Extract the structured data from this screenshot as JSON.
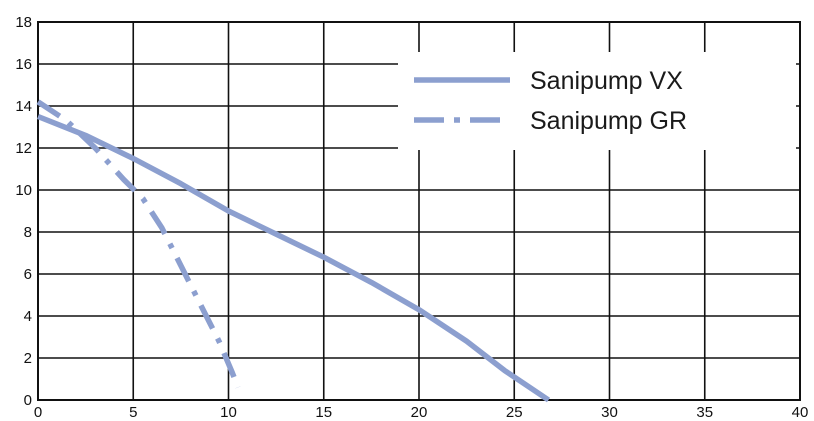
{
  "chart_data": {
    "type": "line",
    "title": "",
    "xlabel": "",
    "ylabel": "",
    "xlim": [
      0,
      40
    ],
    "ylim": [
      0,
      18
    ],
    "x_ticks": [
      0,
      5,
      10,
      15,
      20,
      25,
      30,
      35,
      40
    ],
    "y_ticks": [
      0,
      2,
      4,
      6,
      8,
      10,
      12,
      14,
      16,
      18
    ],
    "grid": true,
    "legend_position": "top-right",
    "series": [
      {
        "name": "Sanipump VX",
        "style": "solid",
        "color": "#8C9FCF",
        "points": [
          [
            0,
            13.5
          ],
          [
            2.5,
            12.6
          ],
          [
            5,
            11.5
          ],
          [
            7.5,
            10.3
          ],
          [
            10,
            9.0
          ],
          [
            12.5,
            7.9
          ],
          [
            15,
            6.8
          ],
          [
            17.5,
            5.6
          ],
          [
            20,
            4.3
          ],
          [
            22.5,
            2.8
          ],
          [
            24.5,
            1.4
          ],
          [
            26.8,
            0.0
          ]
        ]
      },
      {
        "name": "Sanipump GR",
        "style": "dashdot",
        "color": "#8C9FCF",
        "points": [
          [
            0,
            14.2
          ],
          [
            1.5,
            13.3
          ],
          [
            3,
            12.0
          ],
          [
            4.5,
            10.5
          ],
          [
            5.5,
            9.6
          ],
          [
            6.5,
            8.2
          ],
          [
            7.5,
            6.4
          ],
          [
            8.5,
            4.6
          ],
          [
            9.5,
            2.8
          ],
          [
            10.2,
            1.3
          ],
          [
            10.5,
            0.6
          ]
        ]
      }
    ]
  }
}
